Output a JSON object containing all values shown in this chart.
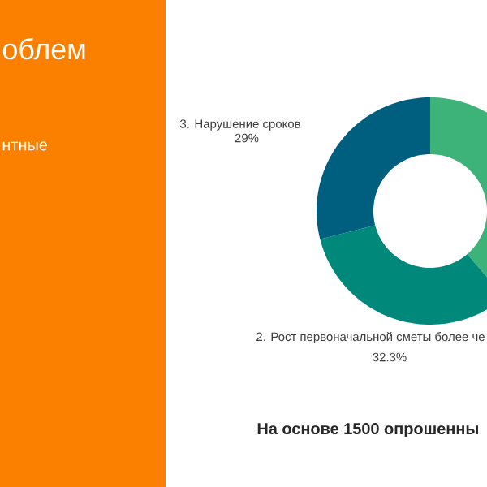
{
  "chart_data": {
    "type": "donut",
    "title": "облем",
    "subtitle": "нтные",
    "categories": [
      null,
      "2. Рост первоначальной сметы более че",
      "3. Нарушение сроков"
    ],
    "values": [
      38.7,
      32.3,
      29
    ],
    "colors": [
      "#3db37a",
      "#00897b",
      "#005f7f"
    ],
    "value_labels": [
      null,
      "32.3%",
      "29%"
    ],
    "annotations": [
      "На основе 1500 опрошенны"
    ]
  }
}
